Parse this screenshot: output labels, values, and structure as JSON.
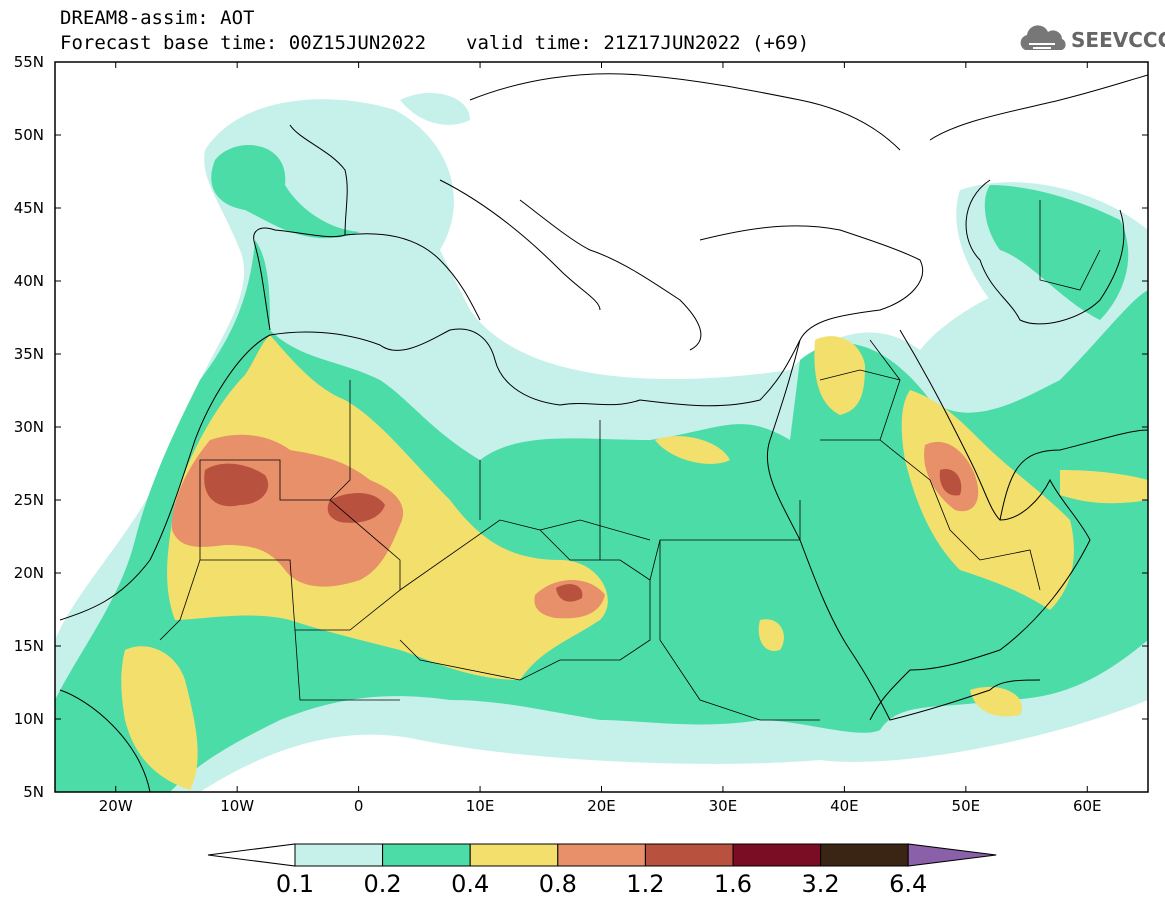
{
  "header": {
    "line1": "DREAM8-assim: AOT",
    "base_time": "Forecast base time: 00Z15JUN2022",
    "valid_time": "valid time: 21Z17JUN2022 (+69)",
    "logo_text": "SEEVCCC",
    "logo_icon": "cloud-icon"
  },
  "axes": {
    "lat_labels": [
      "55N",
      "50N",
      "45N",
      "40N",
      "35N",
      "30N",
      "25N",
      "20N",
      "15N",
      "10N",
      "5N"
    ],
    "lon_labels": [
      "20W",
      "10W",
      "0",
      "10E",
      "20E",
      "30E",
      "40E",
      "50E",
      "60E"
    ],
    "lat_range": [
      5,
      55
    ],
    "lon_range": [
      -25,
      65
    ]
  },
  "colorbar": {
    "labels": [
      "0.1",
      "0.2",
      "0.4",
      "0.8",
      "1.2",
      "1.6",
      "3.2",
      "6.4"
    ],
    "colors": [
      "#ffffff",
      "#c6f0ea",
      "#4cdca8",
      "#f3e06c",
      "#e8906a",
      "#b8523e",
      "#7a0c24",
      "#3a2414",
      "#8a60a8"
    ]
  }
}
